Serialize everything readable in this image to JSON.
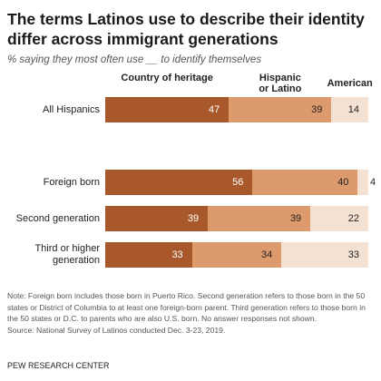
{
  "header": {
    "title": "The terms Latinos use to describe their identity differ across immigrant generations",
    "subtitle": "% saying they most often use __ to identify themselves"
  },
  "colors": {
    "heritage": "#a8582a",
    "hispanic": "#dd9a6d",
    "american": "#f5e1d2"
  },
  "chart_data": {
    "type": "bar",
    "orientation": "horizontal",
    "stacked": true,
    "categories": [
      "All Hispanics",
      "Foreign born",
      "Second generation",
      "Third or higher\ngeneration"
    ],
    "series": [
      {
        "name": "Country of heritage",
        "values": [
          47,
          56,
          39,
          33
        ]
      },
      {
        "name": "Hispanic\nor Latino",
        "values": [
          39,
          40,
          39,
          34
        ]
      },
      {
        "name": "American",
        "values": [
          14,
          4,
          22,
          33
        ]
      }
    ]
  },
  "notes": {
    "note": "Note: Foreign born includes those born in Puerto Rico. Second generation refers to those born in the 50 states or District of Columbia to at least one foreign-born parent. Third generation refers to those born in the 50 states or D.C. to parents who are also U.S. born. No answer responses not shown.",
    "source": "Source: National Survey of Latinos conducted Dec. 3-23, 2019.",
    "footer": "PEW RESEARCH CENTER"
  }
}
